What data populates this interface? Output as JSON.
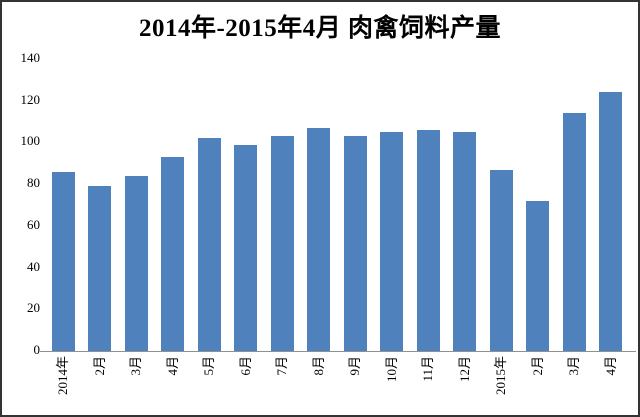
{
  "frame": {
    "border_color": "#333333",
    "background": "#FFFFFF"
  },
  "chart_data": {
    "type": "bar",
    "title": "2014年-2015年4月 肉禽饲料产量",
    "categories": [
      "2014年",
      "2月",
      "3月",
      "4月",
      "5月",
      "6月",
      "7月",
      "8月",
      "9月",
      "10月",
      "11月",
      "12月",
      "2015年",
      "2月",
      "3月",
      "4月"
    ],
    "values": [
      86,
      79,
      84,
      93,
      102,
      99,
      103,
      107,
      103,
      105,
      106,
      105,
      87,
      72,
      114,
      124
    ],
    "xlabel": "",
    "ylabel": "",
    "ylim": [
      0,
      140
    ],
    "yticks": [
      0,
      20,
      40,
      60,
      80,
      100,
      120,
      140
    ],
    "grid": false,
    "legend": null,
    "bar_color": "#4F81BD",
    "axis_line_color": "#909090"
  }
}
